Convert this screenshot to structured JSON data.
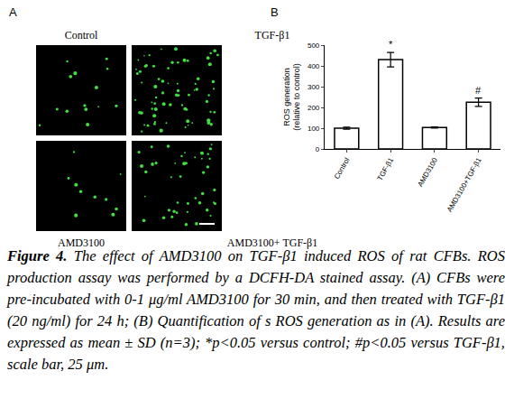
{
  "figure": {
    "panel_a": {
      "label": "A",
      "images": [
        {
          "label": "Control"
        },
        {
          "label": "TGF-β1"
        },
        {
          "label": "AMD3100"
        },
        {
          "label": "AMD3100+ TGF-β1"
        }
      ]
    },
    "panel_b": {
      "label": "B"
    }
  },
  "chart_data": {
    "type": "bar",
    "categories": [
      "Control",
      "TGF-β1",
      "AMD3100",
      "AMD3100+TGF-β1"
    ],
    "values": [
      100,
      430,
      103,
      225
    ],
    "error": [
      5,
      35,
      3,
      20
    ],
    "color": "#ffffff",
    "y_label": "ROS generation\n(relative to control)",
    "ylim": [
      0,
      500
    ],
    "yticks": [
      0,
      100,
      200,
      300,
      400,
      500
    ],
    "grid": false,
    "annotations": [
      {
        "category": "TGF-β1",
        "text": "*"
      },
      {
        "category": "AMD3100+TGF-β1",
        "text": "#"
      }
    ]
  },
  "caption": {
    "label": "Figure 4.",
    "text": "The effect of AMD3100 on TGF-β1 induced ROS of rat CFBs. ROS production assay was performed by a DCFH-DA stained assay. (A) CFBs were pre-incubated with 0-1 μg/ml AMD3100 for 30 min, and then treated with TGF-β1 (20 ng/ml) for 24 h; (B) Quantification of s ROS generation as in (A). Results are expressed as mean ± SD (n=3); *p<0.05 versus control; #p<0.05 versus TGF-β1, scale bar, 25 μm."
  }
}
